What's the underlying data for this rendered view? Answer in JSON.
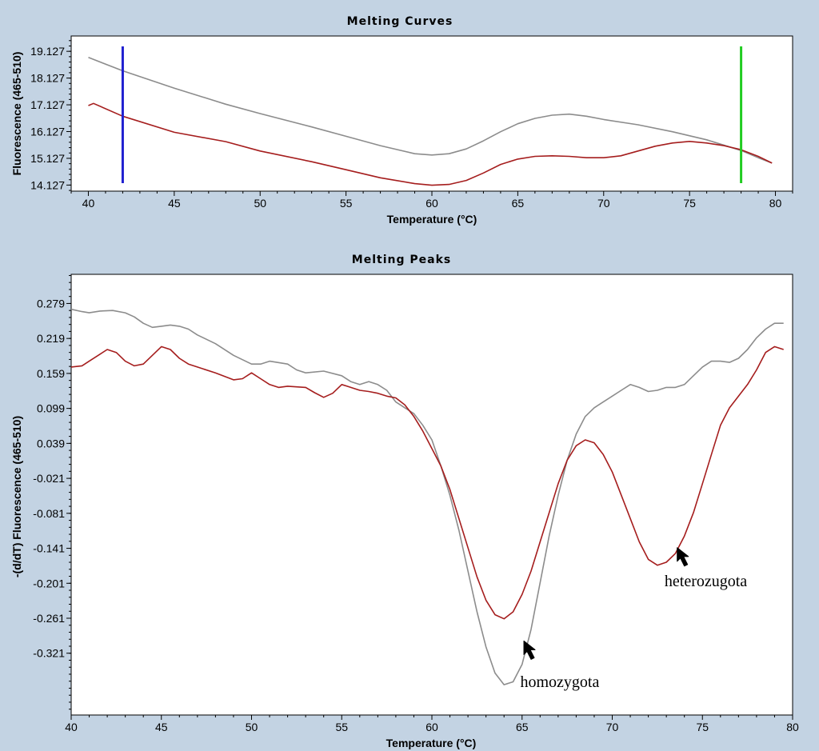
{
  "colors": {
    "background": "#c3d3e3",
    "plot_background": "#ffffff",
    "series_gray": "#8c8c8c",
    "series_red": "#a51d1d",
    "cursor_blue": "#2020d0",
    "cursor_green": "#22cc22"
  },
  "chart_data": [
    {
      "type": "line",
      "title": "Melting Curves",
      "xlabel": "Temperature (°C)",
      "ylabel": "Fluorescence (465-510)",
      "xlim": [
        39,
        81
      ],
      "ylim": [
        13.9,
        19.7
      ],
      "xticks": [
        40,
        45,
        50,
        55,
        60,
        65,
        70,
        75,
        80
      ],
      "yticks": [
        "19.127",
        "18.127",
        "17.127",
        "16.127",
        "15.127",
        "14.127"
      ],
      "cursors": [
        {
          "x": 42,
          "color": "#2020d0"
        },
        {
          "x": 78,
          "color": "#22cc22"
        }
      ],
      "series": [
        {
          "color": "#8c8c8c",
          "x": [
            40,
            42,
            45,
            48,
            50,
            53,
            55,
            57,
            59,
            60,
            61,
            62,
            63,
            64,
            65,
            66,
            67,
            68,
            69,
            70,
            72,
            74,
            76,
            78,
            79,
            79.8
          ],
          "y": [
            18.9,
            18.4,
            17.75,
            17.15,
            16.8,
            16.3,
            15.95,
            15.6,
            15.3,
            15.25,
            15.3,
            15.48,
            15.78,
            16.12,
            16.42,
            16.62,
            16.74,
            16.78,
            16.7,
            16.58,
            16.38,
            16.12,
            15.82,
            15.42,
            15.15,
            14.95
          ]
        },
        {
          "color": "#a51d1d",
          "x": [
            40,
            40.3,
            42,
            45,
            48,
            50,
            53,
            55,
            57,
            59,
            60,
            61,
            62,
            63,
            64,
            65,
            66,
            67,
            68,
            69,
            70,
            71,
            72,
            73,
            74,
            75,
            76,
            77,
            78,
            79,
            79.8
          ],
          "y": [
            17.1,
            17.18,
            16.7,
            16.1,
            15.75,
            15.4,
            15.0,
            14.7,
            14.4,
            14.18,
            14.12,
            14.15,
            14.3,
            14.58,
            14.9,
            15.1,
            15.2,
            15.22,
            15.2,
            15.15,
            15.15,
            15.22,
            15.4,
            15.58,
            15.7,
            15.76,
            15.7,
            15.6,
            15.45,
            15.2,
            14.95
          ]
        }
      ]
    },
    {
      "type": "line",
      "title": "Melting Peaks",
      "xlabel": "Temperature (°C)",
      "ylabel": "-(d/dT) Fluorescence (465-510)",
      "xlim": [
        40,
        80
      ],
      "ylim": [
        -0.427,
        0.329
      ],
      "xticks": [
        40,
        45,
        50,
        55,
        60,
        65,
        70,
        75,
        80
      ],
      "yticks": [
        "0.279",
        "0.219",
        "0.159",
        "0.099",
        "0.039",
        "-0.021",
        "-0.081",
        "-0.141",
        "-0.201",
        "-0.261",
        "-0.321"
      ],
      "annotations": [
        {
          "text": "homozygota",
          "arrow_x": 65.1,
          "arrow_y": -0.3,
          "label_x": 64.9,
          "label_y": -0.379
        },
        {
          "text": "heterozugota",
          "arrow_x": 73.6,
          "arrow_y": -0.14,
          "label_x": 72.9,
          "label_y": -0.206
        }
      ],
      "series": [
        {
          "color": "#8c8c8c",
          "x": [
            40,
            40.6,
            41,
            41.6,
            42.3,
            43,
            43.5,
            44,
            44.5,
            45,
            45.5,
            46,
            46.5,
            47,
            48,
            49,
            50,
            50.5,
            51,
            52,
            52.5,
            53,
            54,
            55,
            55.5,
            56,
            56.5,
            57,
            57.5,
            58,
            58.5,
            59,
            59.5,
            60,
            60.5,
            61,
            61.5,
            62,
            62.5,
            63,
            63.5,
            64,
            64.5,
            65,
            65.5,
            66,
            66.5,
            67,
            67.5,
            68,
            68.5,
            69,
            69.5,
            70,
            70.5,
            71,
            71.5,
            72,
            72.5,
            73,
            73.5,
            74,
            74.5,
            75,
            75.5,
            76,
            76.5,
            77,
            77.5,
            78,
            78.5,
            79,
            79.5
          ],
          "y": [
            0.269,
            0.265,
            0.263,
            0.266,
            0.267,
            0.263,
            0.256,
            0.245,
            0.238,
            0.24,
            0.242,
            0.24,
            0.235,
            0.225,
            0.21,
            0.19,
            0.175,
            0.175,
            0.18,
            0.175,
            0.165,
            0.16,
            0.163,
            0.155,
            0.145,
            0.14,
            0.145,
            0.14,
            0.13,
            0.11,
            0.1,
            0.09,
            0.07,
            0.045,
            0.0,
            -0.05,
            -0.11,
            -0.18,
            -0.25,
            -0.31,
            -0.355,
            -0.375,
            -0.37,
            -0.34,
            -0.28,
            -0.2,
            -0.12,
            -0.05,
            0.01,
            0.055,
            0.085,
            0.1,
            0.11,
            0.12,
            0.13,
            0.14,
            0.135,
            0.128,
            0.13,
            0.135,
            0.135,
            0.14,
            0.155,
            0.17,
            0.18,
            0.18,
            0.178,
            0.185,
            0.2,
            0.22,
            0.235,
            0.245,
            0.245
          ]
        },
        {
          "color": "#a51d1d",
          "x": [
            40,
            40.6,
            41,
            41.5,
            42,
            42.5,
            43,
            43.5,
            44,
            44.5,
            45,
            45.5,
            46,
            46.5,
            47,
            48,
            49,
            49.5,
            50,
            50.5,
            51,
            51.5,
            52,
            53,
            53.5,
            54,
            54.5,
            55,
            55.3,
            56,
            56.5,
            57,
            57.5,
            58,
            58.5,
            59,
            59.5,
            60,
            60.5,
            61,
            61.5,
            62,
            62.5,
            63,
            63.5,
            64,
            64.5,
            65,
            65.5,
            66,
            66.5,
            67,
            67.5,
            68,
            68.5,
            69,
            69.5,
            70,
            70.5,
            71,
            71.5,
            72,
            72.5,
            73,
            73.5,
            74,
            74.5,
            75,
            75.5,
            76,
            76.5,
            77,
            77.5,
            78,
            78.5,
            79,
            79.5
          ],
          "y": [
            0.17,
            0.172,
            0.18,
            0.19,
            0.2,
            0.195,
            0.18,
            0.172,
            0.175,
            0.19,
            0.205,
            0.2,
            0.185,
            0.175,
            0.17,
            0.16,
            0.148,
            0.15,
            0.16,
            0.15,
            0.14,
            0.135,
            0.137,
            0.135,
            0.126,
            0.118,
            0.125,
            0.14,
            0.137,
            0.13,
            0.128,
            0.125,
            0.12,
            0.117,
            0.105,
            0.085,
            0.06,
            0.03,
            0.0,
            -0.04,
            -0.09,
            -0.14,
            -0.19,
            -0.23,
            -0.255,
            -0.262,
            -0.25,
            -0.22,
            -0.18,
            -0.13,
            -0.08,
            -0.03,
            0.01,
            0.035,
            0.045,
            0.04,
            0.02,
            -0.01,
            -0.05,
            -0.09,
            -0.13,
            -0.16,
            -0.17,
            -0.165,
            -0.15,
            -0.12,
            -0.08,
            -0.03,
            0.02,
            0.07,
            0.1,
            0.12,
            0.14,
            0.165,
            0.195,
            0.205,
            0.2
          ]
        }
      ]
    }
  ]
}
